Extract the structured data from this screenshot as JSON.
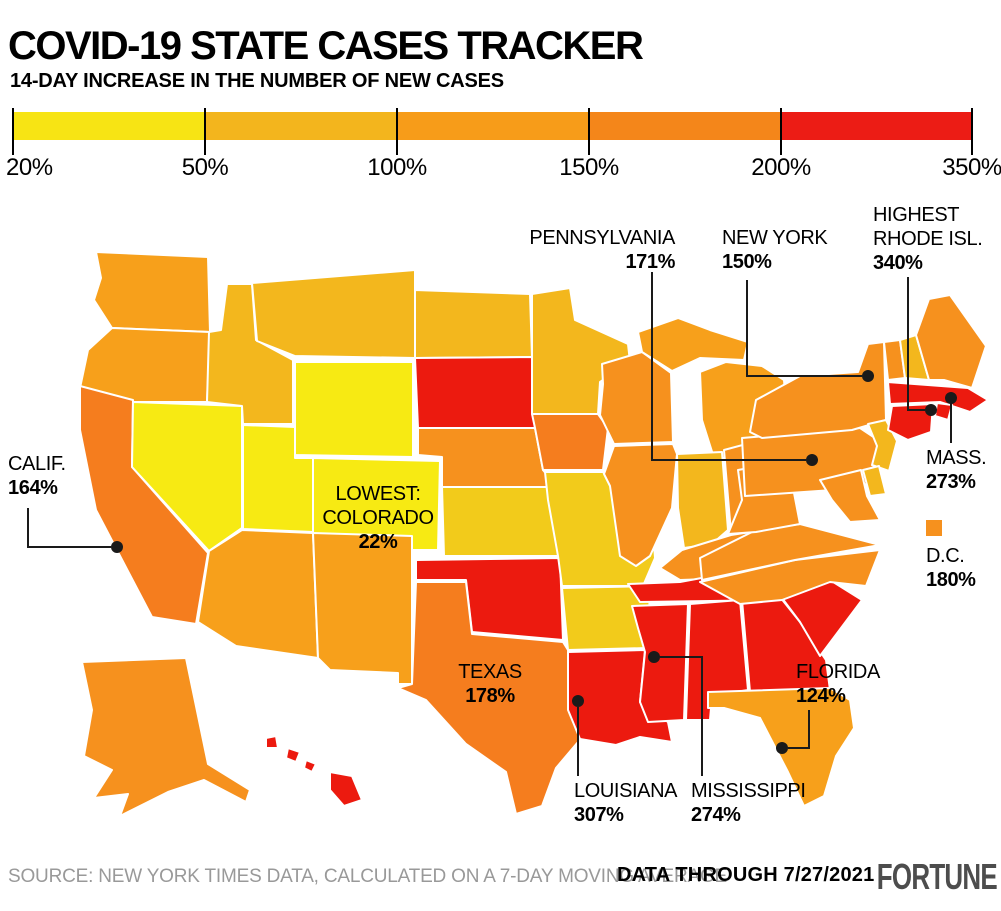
{
  "header": {
    "title": "COVID-19 STATE CASES TRACKER",
    "subtitle": "14-DAY INCREASE IN THE NUMBER OF NEW CASES"
  },
  "legend": {
    "tick_labels": [
      "20%",
      "50%",
      "100%",
      "150%",
      "200%",
      "350%"
    ],
    "segment_colors": [
      "#F7E414",
      "#F3B51D",
      "#F79C19",
      "#F4861A",
      "#EC1C15"
    ]
  },
  "annotations": {
    "california": {
      "name": "CALIF.",
      "value": "164%"
    },
    "colorado": {
      "qualifier": "LOWEST:",
      "name": "COLORADO",
      "value": "22%"
    },
    "pennsylvania": {
      "name": "PENNSYLVANIA",
      "value": "171%"
    },
    "new_york": {
      "name": "NEW YORK",
      "value": "150%"
    },
    "rhode_island": {
      "qualifier": "HIGHEST",
      "name": "RHODE ISL.",
      "value": "340%"
    },
    "massachusetts": {
      "name": "MASS.",
      "value": "273%"
    },
    "dc": {
      "name": "D.C.",
      "value": "180%"
    },
    "texas": {
      "name": "TEXAS",
      "value": "178%"
    },
    "florida": {
      "name": "FLORIDA",
      "value": "124%"
    },
    "louisiana": {
      "name": "LOUISIANA",
      "value": "307%"
    },
    "mississippi": {
      "name": "MISSISSIPPI",
      "value": "274%"
    }
  },
  "footer": {
    "source": "SOURCE: NEW YORK TIMES DATA, CALCULATED ON A 7-DAY MOVING AVERAGE",
    "data_through": "DATA THROUGH 7/27/2021",
    "brand": "FORTUNE"
  },
  "chart_data": {
    "type": "choropleth",
    "region": "United States",
    "title": "COVID-19 STATE CASES TRACKER",
    "metric": "14-day increase in the number of new cases",
    "unit": "%",
    "scale_ticks": [
      20,
      50,
      100,
      150,
      200,
      350
    ],
    "highest": {
      "state": "Rhode Island",
      "value": 340
    },
    "lowest": {
      "state": "Colorado",
      "value": 22
    },
    "labeled_values": {
      "Rhode Island": 340,
      "Louisiana": 307,
      "Mississippi": 274,
      "Massachusetts": 273,
      "District of Columbia": 180,
      "Texas": 178,
      "Pennsylvania": 171,
      "California": 164,
      "New York": 150,
      "Florida": 124,
      "Colorado": 22
    },
    "palette": {
      "yellow": "#F7EA13",
      "yellow_gold": "#F2CB1B",
      "gold": "#F3B71D",
      "orange_light": "#F7A01B",
      "orange": "#F6911E",
      "orange_deep": "#F57D1E",
      "red": "#EC1A0F"
    },
    "state_color_class": {
      "WA": "orange_light",
      "OR": "orange_light",
      "CA": "orange_deep",
      "NV": "yellow",
      "ID": "gold",
      "MT": "gold",
      "WY": "yellow",
      "UT": "yellow",
      "CO": "yellow",
      "AZ": "orange_light",
      "NM": "orange_light",
      "ND": "gold",
      "SD": "red",
      "NE": "orange",
      "KS": "yellow_gold",
      "OK": "red",
      "TX": "orange_deep",
      "MN": "gold",
      "IA": "orange_deep",
      "MO": "yellow_gold",
      "AR": "yellow_gold",
      "LA": "red",
      "WI": "orange",
      "IL": "orange",
      "MI": "orange_light",
      "IN": "gold",
      "OH": "orange",
      "KY": "orange",
      "TN": "red",
      "MS": "red",
      "AL": "red",
      "GA": "red",
      "FL": "orange_light",
      "SC": "red",
      "NC": "orange",
      "VA": "orange",
      "WV": "orange",
      "PA": "orange",
      "NY": "orange",
      "NJ": "gold",
      "DE": "gold",
      "MD": "orange",
      "VT": "orange",
      "NH": "gold",
      "ME": "orange",
      "MA": "red",
      "RI": "red",
      "CT": "red",
      "DC": "orange",
      "AK": "orange",
      "HI": "red"
    }
  }
}
